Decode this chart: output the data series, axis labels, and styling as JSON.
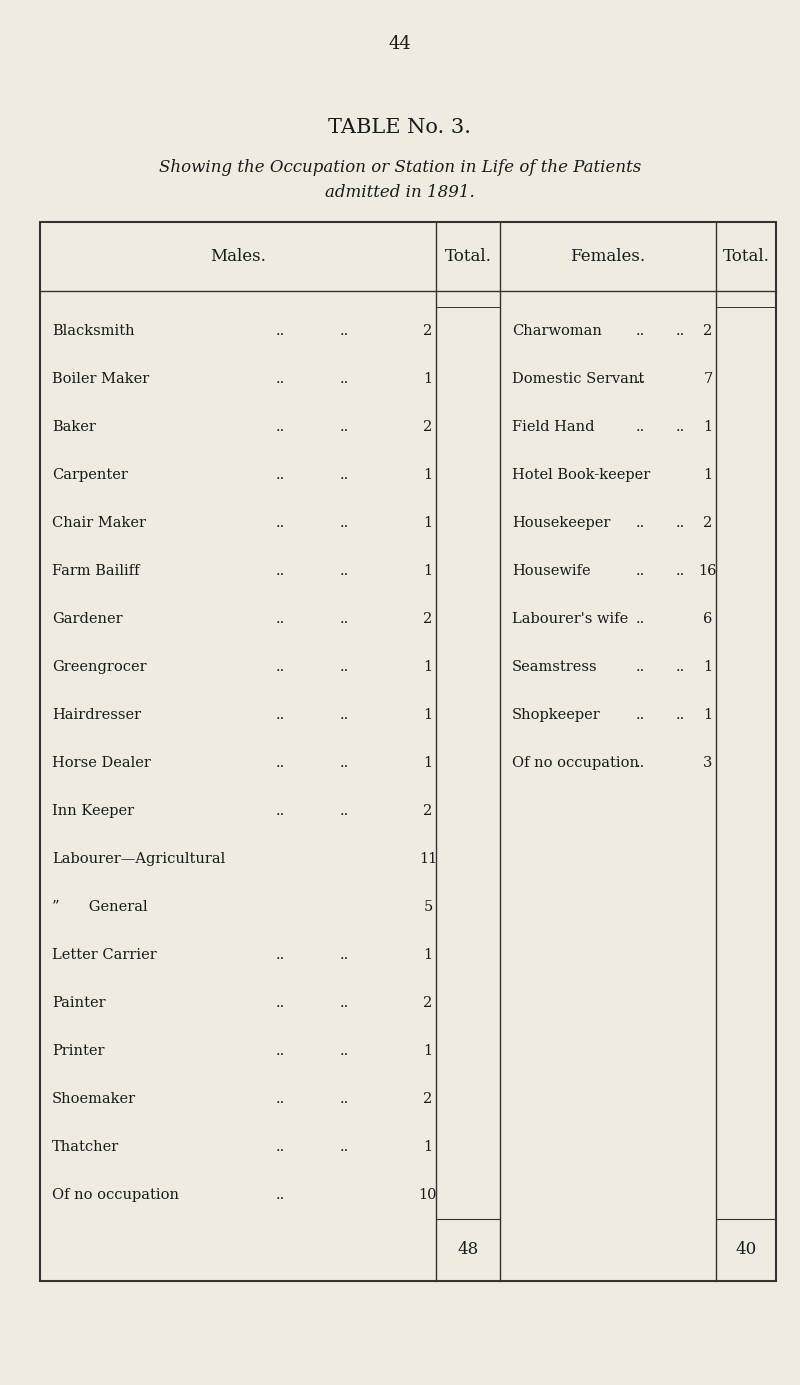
{
  "page_number": "44",
  "title": "TABLE No. 3.",
  "subtitle": "Showing the Occupation or Station in Life of the Patients\nadmitted in 1891.",
  "col_headers": [
    "Males.",
    "Total.",
    "Females.",
    "Total."
  ],
  "males_rows": [
    [
      "Blacksmith",
      "..",
      "..",
      "2"
    ],
    [
      "Boiler Maker",
      "..",
      "..",
      "1"
    ],
    [
      "Baker",
      "..",
      "..",
      "2"
    ],
    [
      "Carpenter",
      "..",
      "..",
      "1"
    ],
    [
      "Chair Maker",
      "..",
      "..",
      "1"
    ],
    [
      "Farm Bailiff",
      "..",
      "..",
      "1"
    ],
    [
      "Gardener",
      "..",
      "..",
      "2"
    ],
    [
      "Greengrocer",
      "..",
      "..",
      "1"
    ],
    [
      "Hairdresser",
      "..",
      "..",
      "1"
    ],
    [
      "Horse Dealer",
      "..",
      "..",
      "1"
    ],
    [
      "Inn Keeper",
      "..",
      "..",
      "2"
    ],
    [
      "Labourer—Agricultural",
      "",
      "",
      "11"
    ],
    [
      "”  General",
      "",
      "",
      "5"
    ],
    [
      "Letter Carrier",
      "..",
      "..",
      "1"
    ],
    [
      "Painter",
      "..",
      "..",
      "2"
    ],
    [
      "Printer",
      "..",
      "..",
      "1"
    ],
    [
      "Shoemaker",
      "..",
      "..",
      "2"
    ],
    [
      "Thatcher",
      "..",
      "..",
      "1"
    ],
    [
      "Of no occupation",
      "..",
      "",
      "10"
    ]
  ],
  "males_total": "48",
  "females_rows": [
    [
      "Charwoman",
      "..",
      "..",
      "2"
    ],
    [
      "Domestic Servant",
      "..",
      "",
      "7"
    ],
    [
      "Field Hand",
      "..",
      "..",
      "1"
    ],
    [
      "Hotel Book-keeper",
      ".",
      "",
      "1"
    ],
    [
      "Housekeeper",
      "..",
      "..",
      "2"
    ],
    [
      "Housewife",
      "..",
      "..",
      "16"
    ],
    [
      "Labourer's wife",
      "..",
      "",
      "6"
    ],
    [
      "Seamstress",
      "..",
      "..",
      "1"
    ],
    [
      "Shopkeeper",
      "..",
      "..",
      "1"
    ],
    [
      "Of no occupation",
      "..",
      "",
      "3"
    ]
  ],
  "females_total": "40",
  "bg_color": "#f0ebe0",
  "text_color": "#1a1a1a",
  "line_color": "#333333"
}
